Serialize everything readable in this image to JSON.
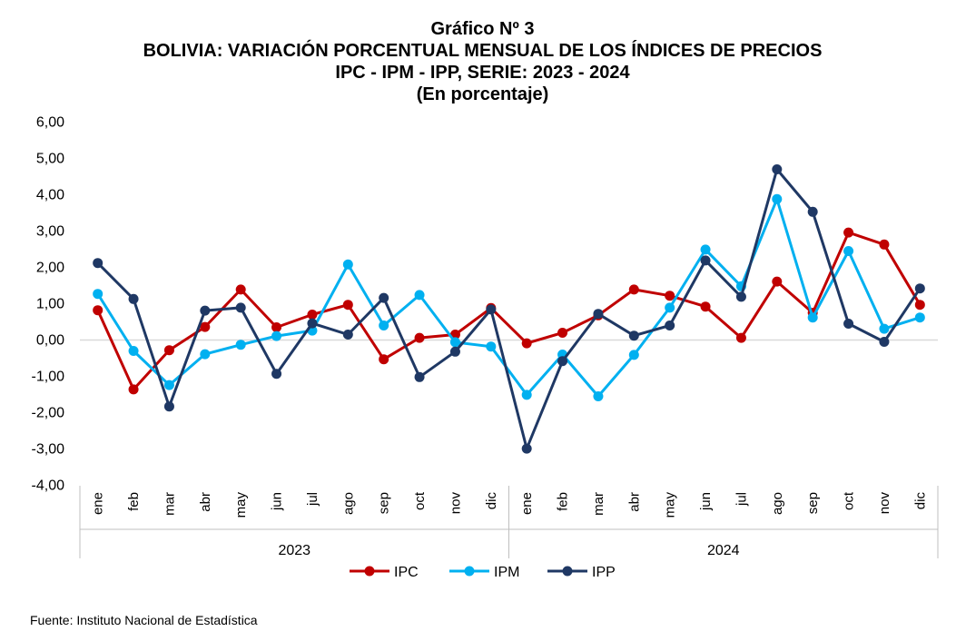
{
  "title": "Gráfico Nº 3",
  "subtitle1": "BOLIVIA: VARIACIÓN PORCENTUAL MENSUAL DE LOS ÍNDICES DE PRECIOS",
  "subtitle2": "IPC - IPM - IPP, SERIE: 2023 - 2024",
  "subtitle3": "(En porcentaje)",
  "source": "Fuente: Instituto Nacional de Estadística",
  "chart_data": {
    "type": "line",
    "years": [
      {
        "label": "2023",
        "months": [
          "ene",
          "feb",
          "mar",
          "abr",
          "may",
          "jun",
          "jul",
          "ago",
          "sep",
          "oct",
          "nov",
          "dic"
        ]
      },
      {
        "label": "2024",
        "months": [
          "ene",
          "feb",
          "mar",
          "abr",
          "may",
          "jun",
          "jul",
          "ago",
          "sep",
          "oct",
          "nov",
          "dic"
        ]
      }
    ],
    "categories": [
      "ene",
      "feb",
      "mar",
      "abr",
      "may",
      "jun",
      "jul",
      "ago",
      "sep",
      "oct",
      "nov",
      "dic",
      "ene",
      "feb",
      "mar",
      "abr",
      "may",
      "jun",
      "jul",
      "ago",
      "sep",
      "oct",
      "nov",
      "dic"
    ],
    "yticks": [
      "6,00",
      "5,00",
      "4,00",
      "3,00",
      "2,00",
      "1,00",
      "0,00",
      "-1,00",
      "-2,00",
      "-3,00",
      "-4,00"
    ],
    "ylim": [
      -4,
      6
    ],
    "legend_position": "bottom",
    "grid": false,
    "series": [
      {
        "name": "IPC",
        "color": "#C00000",
        "values": [
          0.82,
          -1.36,
          -0.28,
          0.36,
          1.39,
          0.35,
          0.7,
          0.97,
          -0.53,
          0.06,
          0.15,
          0.88,
          -0.09,
          0.2,
          0.68,
          1.39,
          1.22,
          0.92,
          0.06,
          1.61,
          0.75,
          2.96,
          2.63,
          0.97
        ]
      },
      {
        "name": "IPM",
        "color": "#00B0F0",
        "values": [
          1.27,
          -0.3,
          -1.24,
          -0.39,
          -0.13,
          0.11,
          0.26,
          2.08,
          0.4,
          1.24,
          -0.06,
          -0.18,
          -1.51,
          -0.4,
          -1.55,
          -0.41,
          0.89,
          2.49,
          1.48,
          3.88,
          0.62,
          2.45,
          0.31,
          0.62
        ]
      },
      {
        "name": "IPP",
        "color": "#1F3864",
        "values": [
          2.12,
          1.13,
          -1.83,
          0.81,
          0.89,
          -0.93,
          0.46,
          0.15,
          1.16,
          -1.02,
          -0.32,
          0.84,
          -2.99,
          -0.58,
          0.72,
          0.12,
          0.4,
          2.19,
          1.19,
          4.7,
          3.53,
          0.45,
          -0.05,
          1.42
        ]
      }
    ]
  }
}
